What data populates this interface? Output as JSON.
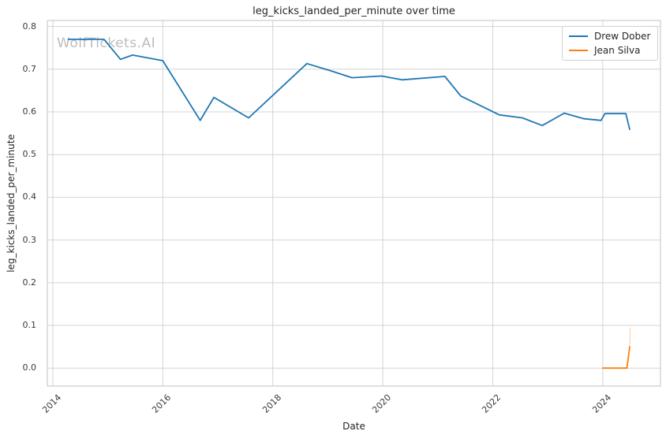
{
  "figure": {
    "watermark": "WolfTickets.AI"
  },
  "chart_data": {
    "type": "line",
    "title": "leg_kicks_landed_per_minute over time",
    "xlabel": "Date",
    "ylabel": "leg_kicks_landed_per_minute",
    "grid": true,
    "legend_position": "upper right",
    "xlim": [
      2013.9,
      2025.05
    ],
    "ylim": [
      -0.042,
      0.814
    ],
    "x_ticks": [
      {
        "label": "2014",
        "value": 2014
      },
      {
        "label": "2016",
        "value": 2016
      },
      {
        "label": "2018",
        "value": 2018
      },
      {
        "label": "2020",
        "value": 2020
      },
      {
        "label": "2022",
        "value": 2022
      },
      {
        "label": "2024",
        "value": 2024
      }
    ],
    "y_ticks": [
      {
        "label": "0.0",
        "value": 0.0
      },
      {
        "label": "0.1",
        "value": 0.1
      },
      {
        "label": "0.2",
        "value": 0.2
      },
      {
        "label": "0.3",
        "value": 0.3
      },
      {
        "label": "0.4",
        "value": 0.4
      },
      {
        "label": "0.5",
        "value": 0.5
      },
      {
        "label": "0.6",
        "value": 0.6
      },
      {
        "label": "0.7",
        "value": 0.7
      },
      {
        "label": "0.8",
        "value": 0.8
      }
    ],
    "series": [
      {
        "name": "Drew Dober",
        "color": "#1f77b4",
        "points": [
          [
            2014.28,
            0.77
          ],
          [
            2014.93,
            0.77
          ],
          [
            2015.23,
            0.723
          ],
          [
            2015.45,
            0.733
          ],
          [
            2016.0,
            0.72
          ],
          [
            2016.68,
            0.58
          ],
          [
            2016.93,
            0.634
          ],
          [
            2017.56,
            0.586
          ],
          [
            2018.62,
            0.713
          ],
          [
            2019.06,
            0.696
          ],
          [
            2019.44,
            0.68
          ],
          [
            2019.98,
            0.684
          ],
          [
            2020.35,
            0.675
          ],
          [
            2021.13,
            0.683
          ],
          [
            2021.42,
            0.637
          ],
          [
            2022.12,
            0.593
          ],
          [
            2022.54,
            0.586
          ],
          [
            2022.9,
            0.568
          ],
          [
            2023.3,
            0.597
          ],
          [
            2023.66,
            0.584
          ],
          [
            2023.97,
            0.58
          ],
          [
            2024.04,
            0.596
          ],
          [
            2024.42,
            0.596
          ],
          [
            2024.49,
            0.559
          ]
        ]
      },
      {
        "name": "Jean Silva",
        "color": "#ff7f0e",
        "points": [
          [
            2024.0,
            0.0
          ],
          [
            2024.44,
            0.0
          ],
          [
            2024.49,
            0.05
          ]
        ],
        "faint_tail": [
          [
            2024.49,
            0.05
          ],
          [
            2024.5,
            0.095
          ]
        ]
      }
    ]
  },
  "colors": {
    "background": "#ffffff",
    "grid": "#d4d4d4",
    "spine": "#cccccc",
    "text": "#262626",
    "watermark": "#bdbdbd",
    "series_blue": "#1f77b4",
    "series_orange": "#ff7f0e"
  }
}
